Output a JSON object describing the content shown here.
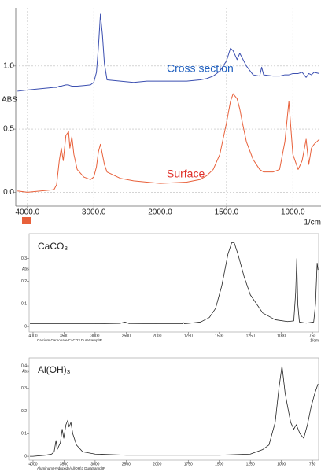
{
  "chart_data": [
    {
      "type": "line",
      "ylabel": "ABS",
      "xlabel": "1/cm",
      "xlim": [
        4176,
        788
      ],
      "ylim": [
        -0.11,
        1.46
      ],
      "xticks": [
        {
          "value": 4000,
          "label": "4000.0"
        },
        {
          "value": 3000,
          "label": "3000.0"
        },
        {
          "value": 2000,
          "label": "2000.0"
        },
        {
          "value": 1500,
          "label": "1500.0"
        },
        {
          "value": 1000,
          "label": "1000.0"
        }
      ],
      "yticks": [
        {
          "value": 0,
          "label": "0.0"
        },
        0.5,
        {
          "value": 1,
          "label": "1.0"
        }
      ],
      "grid": true,
      "annotations": [
        {
          "text": "Cross section",
          "color": "#1f5fbf"
        },
        {
          "text": "Surface",
          "color": "#e0302a"
        }
      ],
      "x": [
        4150,
        4000,
        3800,
        3600,
        3560,
        3520,
        3490,
        3460,
        3420,
        3380,
        3360,
        3330,
        3300,
        3250,
        3150,
        3050,
        3000,
        2960,
        2930,
        2900,
        2870,
        2840,
        2800,
        2600,
        2400,
        2200,
        2000,
        1800,
        1700,
        1650,
        1600,
        1550,
        1500,
        1470,
        1450,
        1420,
        1400,
        1380,
        1350,
        1300,
        1250,
        1235,
        1220,
        1150,
        1100,
        1060,
        1030,
        1000,
        960,
        930,
        900,
        880,
        860,
        840,
        800
      ],
      "series": [
        {
          "name": "Cross section",
          "color": "#3b4fb0",
          "values": [
            0.8,
            0.81,
            0.82,
            0.83,
            0.83,
            0.84,
            0.84,
            0.845,
            0.85,
            0.85,
            0.845,
            0.84,
            0.84,
            0.84,
            0.845,
            0.85,
            0.87,
            0.95,
            1.15,
            1.41,
            1.25,
            1.02,
            0.89,
            0.88,
            0.87,
            0.88,
            0.88,
            0.88,
            0.89,
            0.9,
            0.92,
            0.96,
            1.04,
            1.14,
            1.12,
            1.05,
            1.1,
            1.06,
            1.0,
            0.93,
            0.92,
            0.99,
            0.93,
            0.92,
            0.92,
            0.93,
            0.93,
            0.94,
            0.94,
            0.95,
            0.91,
            0.94,
            0.93,
            0.95,
            0.94
          ]
        },
        {
          "name": "Surface",
          "color": "#e8603a",
          "values": [
            0.01,
            0.0,
            0.01,
            0.02,
            0.06,
            0.25,
            0.35,
            0.25,
            0.45,
            0.48,
            0.35,
            0.44,
            0.3,
            0.18,
            0.12,
            0.1,
            0.12,
            0.2,
            0.32,
            0.38,
            0.3,
            0.22,
            0.16,
            0.11,
            0.09,
            0.08,
            0.07,
            0.08,
            0.1,
            0.13,
            0.18,
            0.3,
            0.55,
            0.72,
            0.78,
            0.74,
            0.66,
            0.55,
            0.4,
            0.26,
            0.18,
            0.17,
            0.16,
            0.16,
            0.18,
            0.4,
            0.72,
            0.3,
            0.18,
            0.25,
            0.42,
            0.22,
            0.35,
            0.38,
            0.42
          ]
        }
      ]
    },
    {
      "type": "line",
      "title": "CaCO₃",
      "ylabel": "Abs",
      "xlabel": "1/cm",
      "caption": "Calcium Carbonate/CaCO3 DuraSamplIR",
      "xlim": [
        4063,
        700
      ],
      "ylim": [
        -0.024,
        0.41
      ],
      "xticks": [
        4000,
        3500,
        3000,
        2500,
        2000,
        1750,
        1500,
        1250,
        1000,
        750
      ],
      "yticks": [
        0,
        0.1,
        0.2,
        0.3
      ],
      "grid": false,
      "x": [
        4050,
        4000,
        3500,
        3000,
        2600,
        2520,
        2450,
        2000,
        1800,
        1790,
        1780,
        1650,
        1580,
        1530,
        1480,
        1430,
        1400,
        1380,
        1350,
        1300,
        1250,
        1150,
        1050,
        950,
        900,
        885,
        876,
        868,
        855,
        800,
        740,
        725,
        712,
        705
      ],
      "series": [
        {
          "name": "CaCO₃",
          "color": "#222222",
          "values": [
            0.012,
            0.012,
            0.012,
            0.012,
            0.014,
            0.02,
            0.013,
            0.012,
            0.012,
            0.018,
            0.012,
            0.02,
            0.04,
            0.08,
            0.18,
            0.32,
            0.37,
            0.37,
            0.32,
            0.22,
            0.14,
            0.06,
            0.03,
            0.022,
            0.025,
            0.15,
            0.3,
            0.1,
            0.02,
            0.015,
            0.02,
            0.1,
            0.28,
            0.25
          ]
        }
      ]
    },
    {
      "type": "line",
      "title": "Al(OH)₃",
      "ylabel": "Abs",
      "caption": "Aluminum Hydroxide/Al(OH)3 DuraSamplIR",
      "xlim": [
        4063,
        700
      ],
      "ylim": [
        -0.017,
        0.435
      ],
      "xticks": [
        4000,
        3500,
        3000,
        2500,
        2000,
        1750,
        1500,
        1250,
        1000,
        750
      ],
      "yticks": [
        0,
        0.1,
        0.2,
        0.3,
        0.4
      ],
      "grid": false,
      "x": [
        4050,
        4000,
        3800,
        3700,
        3660,
        3630,
        3610,
        3560,
        3530,
        3505,
        3470,
        3440,
        3420,
        3390,
        3360,
        3300,
        3200,
        3000,
        2500,
        2000,
        1500,
        1250,
        1150,
        1100,
        1050,
        1020,
        995,
        970,
        950,
        925,
        900,
        880,
        850,
        820,
        790,
        760,
        730,
        705
      ],
      "series": [
        {
          "name": "Al(OH)₃",
          "color": "#222222",
          "values": [
            0,
            0,
            0.005,
            0.01,
            0.02,
            0.07,
            0.03,
            0.06,
            0.12,
            0.08,
            0.14,
            0.16,
            0.13,
            0.15,
            0.1,
            0.05,
            0.02,
            0.01,
            0.005,
            0.005,
            0.005,
            0.01,
            0.03,
            0.05,
            0.15,
            0.3,
            0.4,
            0.28,
            0.22,
            0.15,
            0.12,
            0.14,
            0.1,
            0.08,
            0.14,
            0.22,
            0.28,
            0.32
          ]
        }
      ]
    }
  ]
}
